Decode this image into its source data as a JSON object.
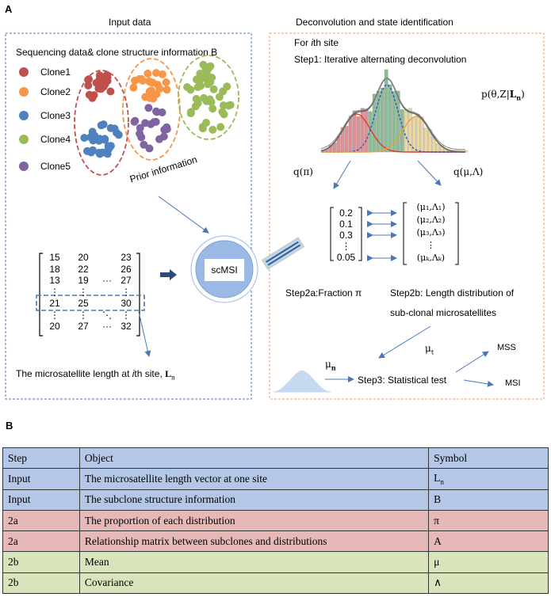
{
  "panel_a": {
    "label": "A",
    "input_title": "Input data",
    "deconv_title": "Deconvolution and state identification",
    "seq_info": "Sequencing data& clone structure information B",
    "clones": [
      {
        "label": "Clone1",
        "color": "#c0504d"
      },
      {
        "label": "Clone2",
        "color": "#f79646"
      },
      {
        "label": "Clone3",
        "color": "#4f81bd"
      },
      {
        "label": "Clone4",
        "color": "#9bbb59"
      },
      {
        "label": "Clone5",
        "color": "#8064a2"
      }
    ],
    "prior": "Prior  information",
    "scmsi": "scMSI",
    "matrix_rows": [
      [
        "15",
        "20",
        "",
        "23"
      ],
      [
        "18",
        "22",
        "",
        "26"
      ],
      [
        "13",
        "19",
        "···",
        "27"
      ],
      [
        "⋮",
        "⋮",
        "",
        "⋮"
      ],
      [
        "21",
        "25",
        "",
        "30"
      ],
      [
        "⋮",
        "⋮",
        "⋱",
        "⋮"
      ],
      [
        "20",
        "27",
        "···",
        "32"
      ]
    ],
    "ms_length_text": "The microsatellite length at ",
    "ms_length_italic": "i",
    "ms_length_text2": "th site, ",
    "ms_length_symbol": "L",
    "ms_length_sub": "n",
    "for_site_1": "For ",
    "for_site_i": "i",
    "for_site_2": "th site",
    "step1": "Step1: Iterative alternating deconvolution",
    "posterior": "p(θ,Z|",
    "posterior_L": "L",
    "posterior_sub": "n",
    "posterior_end": ")",
    "q_pi": "q(π)",
    "q_mu": "q(μ,Λ)",
    "fractions": [
      "0.2",
      "0.1",
      "0.3",
      "⋮",
      "0.05"
    ],
    "params": [
      "(μ₁,Λ₁)",
      "(μ₂,Λ₂)",
      "(μ₃,Λ₃)",
      "⋮",
      "(μₖ,Λₖ)"
    ],
    "step2a": "Step2a:Fraction π",
    "step2b_line1": "Step2b: Length distribution of",
    "step2b_line2": "sub-clonal microsatellites",
    "mu_t": "μ",
    "mu_t_sub": "t",
    "mu_n": "μ",
    "mu_n_sub": "n",
    "step3": "Step3: Statistical test",
    "mss": "MSS",
    "msi": "MSI"
  },
  "panel_b": {
    "label": "B",
    "headers": [
      "Step",
      "Object",
      "Symbol"
    ],
    "rows": [
      {
        "step": "Input",
        "object": "The microsatellite length vector at one site",
        "symbol": "L",
        "symbol_sub": "n",
        "group": "input"
      },
      {
        "step": "Input",
        "object": "The subclone structure information",
        "symbol": "B",
        "symbol_sub": "",
        "group": "input"
      },
      {
        "step": "2a",
        "object": "The proportion of each distribution",
        "symbol": "π",
        "symbol_sub": "",
        "group": "s2a"
      },
      {
        "step": "2a",
        "object": "Relationship matrix between subclones and distributions",
        "symbol": "A",
        "symbol_sub": "",
        "group": "s2a"
      },
      {
        "step": "2b",
        "object": "Mean",
        "symbol": "μ",
        "symbol_sub": "",
        "group": "s2b"
      },
      {
        "step": "2b",
        "object": "Covariance",
        "symbol": "∧",
        "symbol_sub": "",
        "group": "s2b"
      }
    ]
  },
  "colors": {
    "input_border": "#4a78b5",
    "deconv_border": "#f0a070",
    "arrow": "#4a78b5",
    "scmsi_fill": "#a9c4ec",
    "scmsi_ring": "#9cb8e4"
  }
}
